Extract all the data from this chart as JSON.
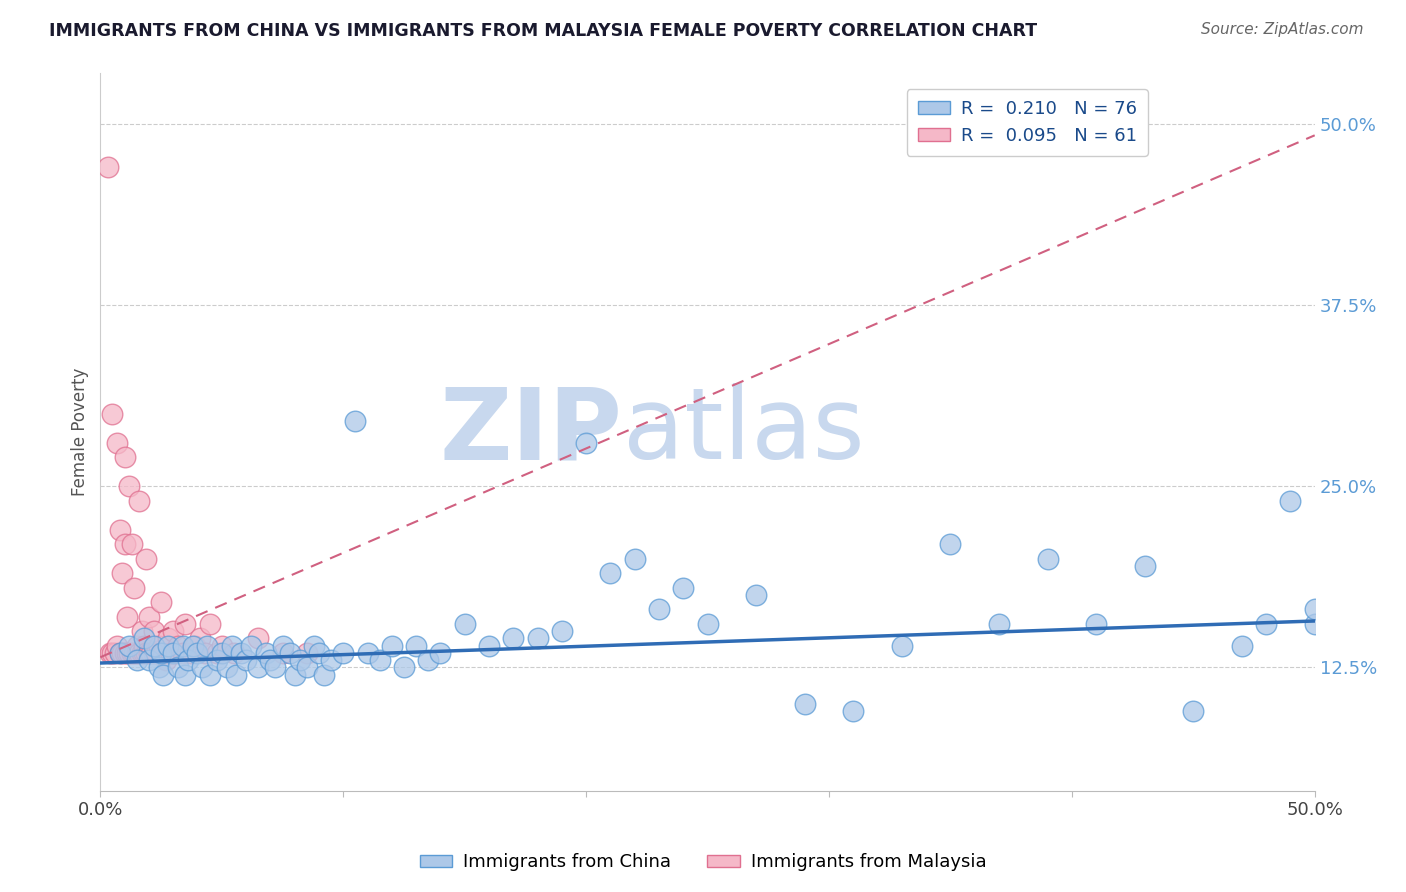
{
  "title": "IMMIGRANTS FROM CHINA VS IMMIGRANTS FROM MALAYSIA FEMALE POVERTY CORRELATION CHART",
  "source": "Source: ZipAtlas.com",
  "ylabel": "Female Poverty",
  "ytick_labels": [
    "12.5%",
    "25.0%",
    "37.5%",
    "50.0%"
  ],
  "ytick_values": [
    0.125,
    0.25,
    0.375,
    0.5
  ],
  "xmin": 0.0,
  "xmax": 0.5,
  "ymin": 0.04,
  "ymax": 0.535,
  "legend_china_R": "0.210",
  "legend_china_N": "76",
  "legend_malaysia_R": "0.095",
  "legend_malaysia_N": "61",
  "china_color": "#adc8e8",
  "malaysia_color": "#f5b8c8",
  "china_edge_color": "#5b9bd5",
  "malaysia_edge_color": "#e07090",
  "china_line_color": "#2f6cb5",
  "malaysia_line_color": "#d06080",
  "china_scatter_x": [
    0.008,
    0.012,
    0.015,
    0.018,
    0.02,
    0.022,
    0.024,
    0.025,
    0.026,
    0.028,
    0.03,
    0.032,
    0.034,
    0.035,
    0.036,
    0.038,
    0.04,
    0.042,
    0.044,
    0.045,
    0.048,
    0.05,
    0.052,
    0.054,
    0.056,
    0.058,
    0.06,
    0.062,
    0.065,
    0.068,
    0.07,
    0.072,
    0.075,
    0.078,
    0.08,
    0.082,
    0.085,
    0.088,
    0.09,
    0.092,
    0.095,
    0.1,
    0.105,
    0.11,
    0.115,
    0.12,
    0.125,
    0.13,
    0.135,
    0.14,
    0.15,
    0.16,
    0.17,
    0.18,
    0.19,
    0.2,
    0.21,
    0.22,
    0.23,
    0.24,
    0.25,
    0.27,
    0.29,
    0.31,
    0.33,
    0.35,
    0.37,
    0.39,
    0.41,
    0.43,
    0.45,
    0.47,
    0.48,
    0.49,
    0.5,
    0.5
  ],
  "china_scatter_y": [
    0.135,
    0.14,
    0.13,
    0.145,
    0.13,
    0.14,
    0.125,
    0.135,
    0.12,
    0.14,
    0.135,
    0.125,
    0.14,
    0.12,
    0.13,
    0.14,
    0.135,
    0.125,
    0.14,
    0.12,
    0.13,
    0.135,
    0.125,
    0.14,
    0.12,
    0.135,
    0.13,
    0.14,
    0.125,
    0.135,
    0.13,
    0.125,
    0.14,
    0.135,
    0.12,
    0.13,
    0.125,
    0.14,
    0.135,
    0.12,
    0.13,
    0.135,
    0.295,
    0.135,
    0.13,
    0.14,
    0.125,
    0.14,
    0.13,
    0.135,
    0.155,
    0.14,
    0.145,
    0.145,
    0.15,
    0.28,
    0.19,
    0.2,
    0.165,
    0.18,
    0.155,
    0.175,
    0.1,
    0.095,
    0.14,
    0.21,
    0.155,
    0.2,
    0.155,
    0.195,
    0.095,
    0.14,
    0.155,
    0.24,
    0.155,
    0.165
  ],
  "malaysia_scatter_x": [
    0.003,
    0.004,
    0.005,
    0.005,
    0.006,
    0.007,
    0.007,
    0.008,
    0.008,
    0.009,
    0.009,
    0.01,
    0.01,
    0.01,
    0.011,
    0.011,
    0.012,
    0.012,
    0.013,
    0.013,
    0.014,
    0.014,
    0.015,
    0.015,
    0.016,
    0.016,
    0.017,
    0.017,
    0.018,
    0.018,
    0.019,
    0.019,
    0.02,
    0.02,
    0.021,
    0.022,
    0.022,
    0.023,
    0.024,
    0.025,
    0.025,
    0.026,
    0.027,
    0.028,
    0.029,
    0.03,
    0.031,
    0.032,
    0.034,
    0.035,
    0.037,
    0.039,
    0.041,
    0.043,
    0.045,
    0.048,
    0.05,
    0.055,
    0.065,
    0.075,
    0.085
  ],
  "malaysia_scatter_y": [
    0.47,
    0.135,
    0.135,
    0.3,
    0.135,
    0.14,
    0.28,
    0.135,
    0.22,
    0.135,
    0.19,
    0.135,
    0.21,
    0.27,
    0.135,
    0.16,
    0.135,
    0.25,
    0.135,
    0.21,
    0.135,
    0.18,
    0.135,
    0.14,
    0.135,
    0.24,
    0.135,
    0.15,
    0.135,
    0.14,
    0.135,
    0.2,
    0.135,
    0.16,
    0.135,
    0.135,
    0.15,
    0.135,
    0.14,
    0.135,
    0.17,
    0.135,
    0.13,
    0.145,
    0.135,
    0.15,
    0.135,
    0.14,
    0.135,
    0.155,
    0.135,
    0.14,
    0.145,
    0.135,
    0.155,
    0.135,
    0.14,
    0.135,
    0.145,
    0.135,
    0.135
  ],
  "watermark_zip": "ZIP",
  "watermark_atlas": "atlas",
  "watermark_color": "#c8d8ee",
  "grid_color": "#cccccc",
  "background_color": "#ffffff",
  "malaysia_trendline_slope": 0.72,
  "malaysia_trendline_intercept": 0.132,
  "china_trendline_slope": 0.058,
  "china_trendline_intercept": 0.128
}
